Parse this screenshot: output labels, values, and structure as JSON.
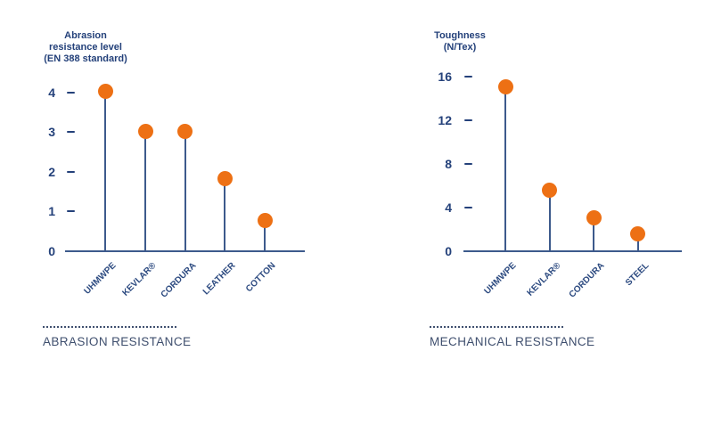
{
  "colors": {
    "navy_text": "#24417a",
    "axis_blue": "#3d5a8c",
    "dot_orange": "#ed7014",
    "caption_slate": "#3f4f6e",
    "background": "#ffffff"
  },
  "chart_data": [
    {
      "type": "lollipop",
      "title": "Abrasion resistance level (EN 388 standard)",
      "title_lines": [
        "Abrasion",
        "resistance level",
        "(EN 388 standard)"
      ],
      "categories": [
        "UHMWPE",
        "KEVLAR®",
        "CORDURA",
        "LEATHER",
        "COTTON"
      ],
      "values": [
        4,
        3,
        3,
        1.8,
        0.75
      ],
      "yticks": [
        4,
        3,
        2,
        1,
        0
      ],
      "ylim": [
        0,
        4.5
      ],
      "ylabel": "Abrasion resistance level (EN 388 standard)",
      "xlabel": "",
      "grid": false,
      "legend": "none",
      "caption": "ABRASION RESISTANCE"
    },
    {
      "type": "lollipop",
      "title": "Toughness (N/Tex)",
      "title_lines": [
        "Toughness",
        "(N/Tex)"
      ],
      "categories": [
        "UHMWPE",
        "KEVLAR®",
        "CORDURA",
        "STEEL"
      ],
      "values": [
        15,
        5.5,
        3,
        1.5
      ],
      "yticks": [
        16,
        12,
        8,
        4,
        0
      ],
      "ylim": [
        0,
        18
      ],
      "ylabel": "Toughness (N/Tex)",
      "xlabel": "",
      "grid": false,
      "legend": "none",
      "caption": "MECHANICAL RESISTANCE"
    }
  ]
}
